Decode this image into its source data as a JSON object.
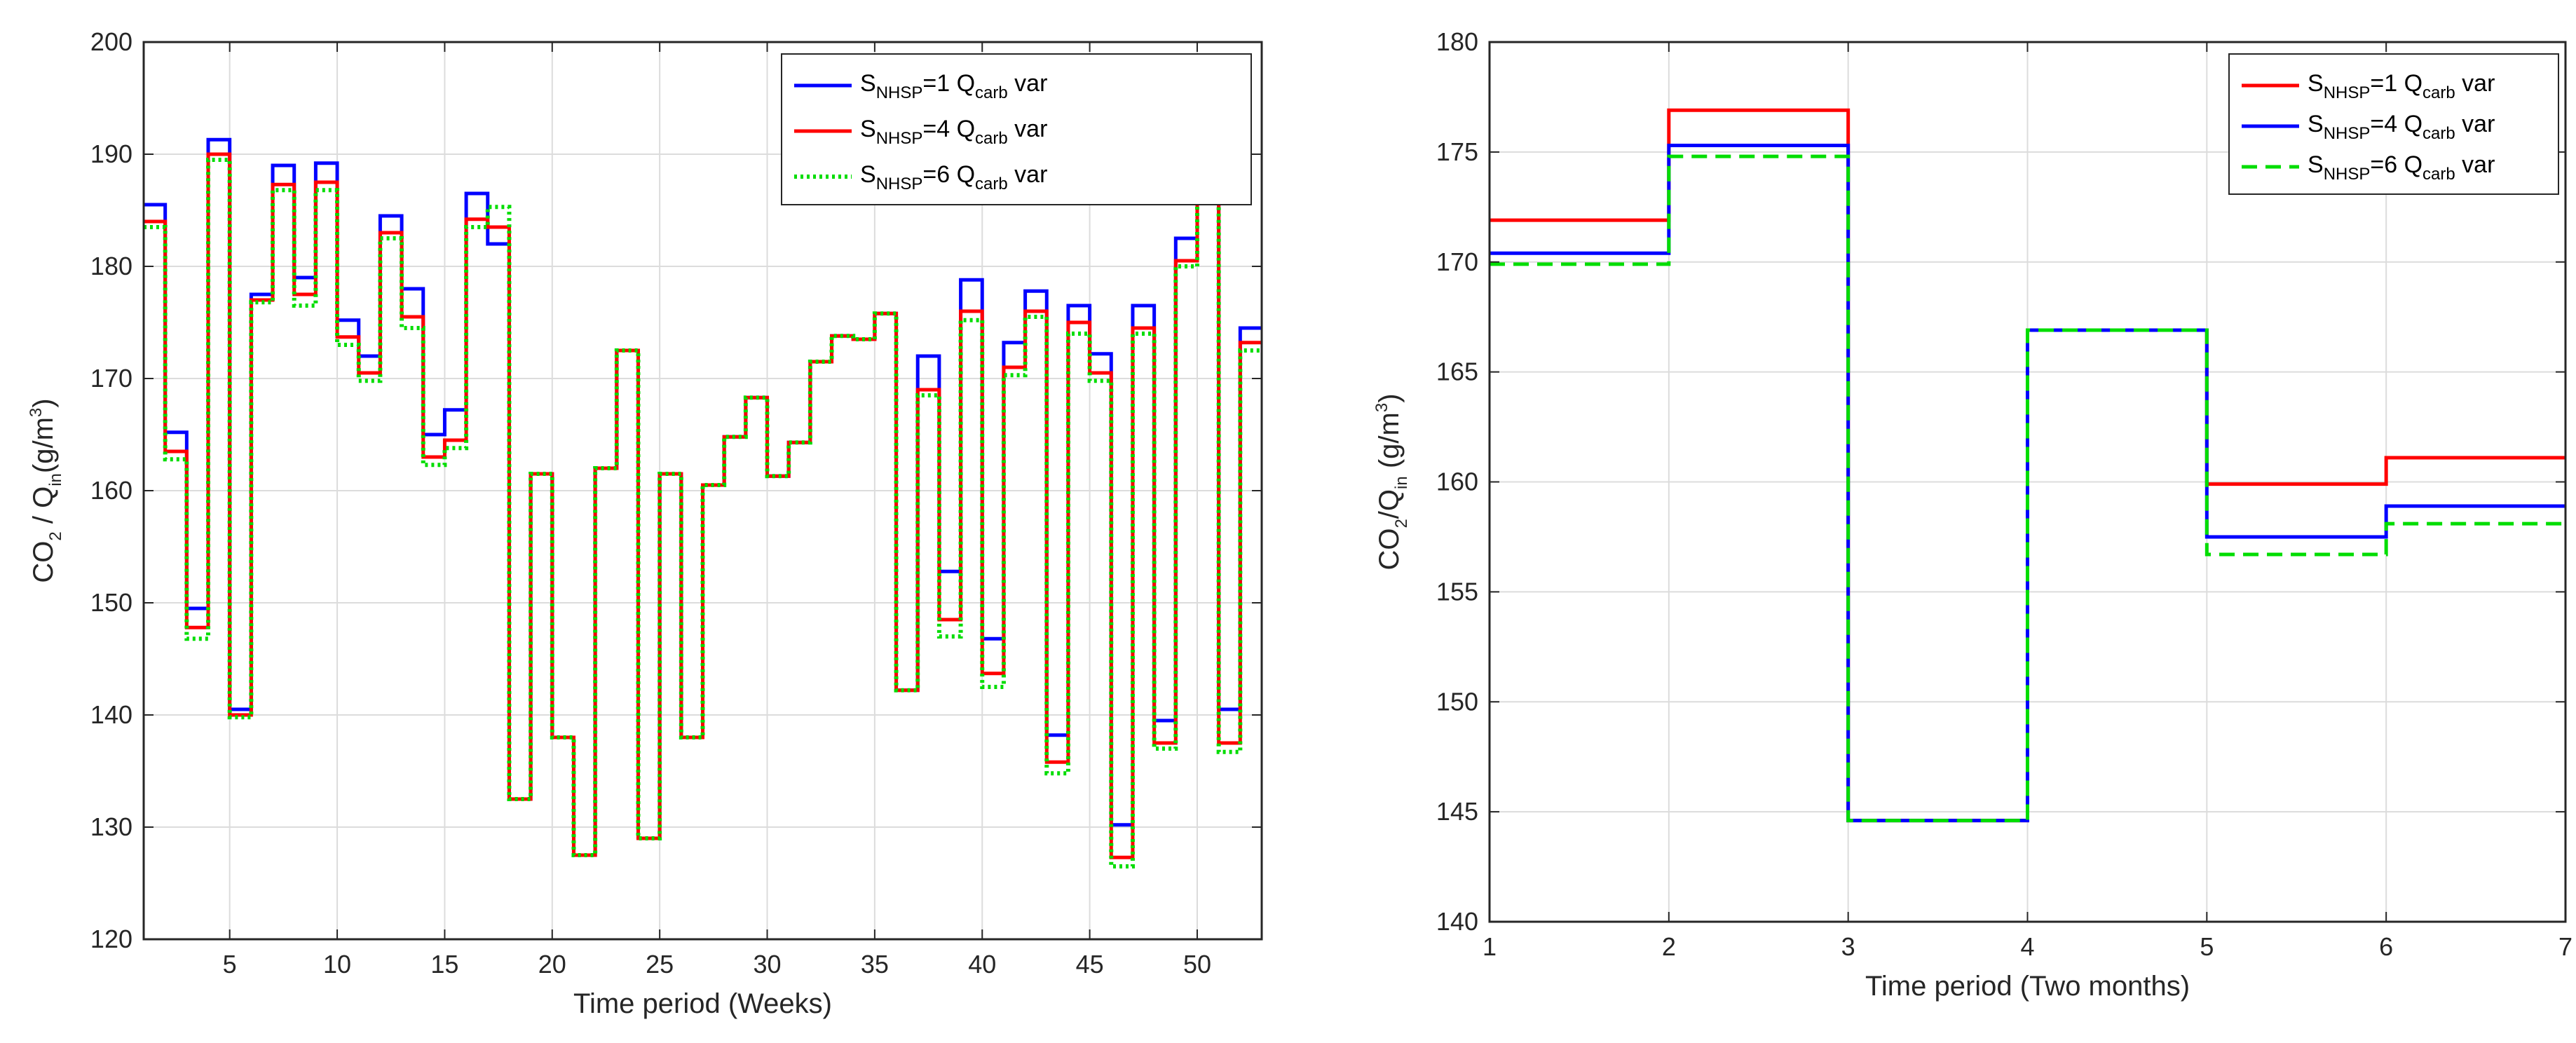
{
  "chart_data": [
    {
      "type": "line",
      "step": true,
      "xlabel": "Time period (Weeks)",
      "ylabel": {
        "main": "CO",
        "s1": "2",
        "mid": " / Q",
        "s2": "in",
        "end": "(g/m",
        "sup": "3",
        "close": ")"
      },
      "xlim": [
        1,
        53
      ],
      "ylim": [
        120,
        200
      ],
      "xticks": [
        5,
        10,
        15,
        20,
        25,
        30,
        35,
        40,
        45,
        50
      ],
      "yticks": [
        120,
        130,
        140,
        150,
        160,
        170,
        180,
        190,
        200
      ],
      "grid": true,
      "legend_position": "top-right",
      "series": [
        {
          "name": "S_NHSP=1 Q_carb var",
          "label_parts": [
            "S",
            "NHSP",
            "=1 Q",
            "carb",
            " var"
          ],
          "color": "#0000ff",
          "dash": "solid",
          "x": [
            1,
            2,
            3,
            4,
            5,
            6,
            7,
            8,
            9,
            10,
            11,
            12,
            13,
            14,
            15,
            16,
            17,
            18,
            19,
            20,
            21,
            22,
            23,
            24,
            25,
            26,
            27,
            28,
            29,
            30,
            31,
            32,
            33,
            34,
            35,
            36,
            37,
            38,
            39,
            40,
            41,
            42,
            43,
            44,
            45,
            46,
            47,
            48,
            49,
            50,
            51,
            52,
            53
          ],
          "values": [
            185.5,
            165.2,
            149.5,
            191.3,
            140.5,
            177.5,
            189.0,
            179.0,
            189.2,
            175.2,
            172.0,
            184.5,
            178.0,
            165.0,
            167.2,
            186.5,
            182.0,
            132.5,
            161.5,
            138.0,
            127.5,
            162.0,
            172.5,
            129.0,
            161.5,
            138.0,
            160.5,
            164.8,
            168.3,
            161.3,
            164.3,
            171.5,
            173.8,
            173.5,
            175.8,
            142.2,
            172.0,
            152.8,
            178.8,
            146.8,
            173.2,
            177.8,
            138.2,
            176.5,
            172.2,
            130.2,
            176.5,
            139.5,
            182.5,
            194.0,
            140.5,
            174.5,
            174.5
          ]
        },
        {
          "name": "S_NHSP=4 Q_carb var",
          "label_parts": [
            "S",
            "NHSP",
            "=4 Q",
            "carb",
            " var"
          ],
          "color": "#ff0000",
          "dash": "solid",
          "x": [
            1,
            2,
            3,
            4,
            5,
            6,
            7,
            8,
            9,
            10,
            11,
            12,
            13,
            14,
            15,
            16,
            17,
            18,
            19,
            20,
            21,
            22,
            23,
            24,
            25,
            26,
            27,
            28,
            29,
            30,
            31,
            32,
            33,
            34,
            35,
            36,
            37,
            38,
            39,
            40,
            41,
            42,
            43,
            44,
            45,
            46,
            47,
            48,
            49,
            50,
            51,
            52,
            53
          ],
          "values": [
            184.0,
            163.5,
            147.8,
            190.0,
            140.0,
            177.0,
            187.3,
            177.5,
            187.5,
            173.7,
            170.5,
            183.0,
            175.5,
            163.0,
            164.5,
            184.2,
            183.5,
            132.5,
            161.5,
            138.0,
            127.5,
            162.0,
            172.5,
            129.0,
            161.5,
            138.0,
            160.5,
            164.8,
            168.3,
            161.3,
            164.3,
            171.5,
            173.8,
            173.5,
            175.8,
            142.2,
            169.0,
            148.5,
            176.0,
            143.7,
            171.0,
            176.0,
            135.8,
            175.0,
            170.5,
            127.3,
            174.5,
            137.5,
            180.5,
            192.2,
            137.5,
            173.2,
            173.2
          ]
        },
        {
          "name": "S_NHSP=6 Q_carb var",
          "label_parts": [
            "S",
            "NHSP",
            "=6 Q",
            "carb",
            " var"
          ],
          "color": "#00dd00",
          "dash": "dotted",
          "x": [
            1,
            2,
            3,
            4,
            5,
            6,
            7,
            8,
            9,
            10,
            11,
            12,
            13,
            14,
            15,
            16,
            17,
            18,
            19,
            20,
            21,
            22,
            23,
            24,
            25,
            26,
            27,
            28,
            29,
            30,
            31,
            32,
            33,
            34,
            35,
            36,
            37,
            38,
            39,
            40,
            41,
            42,
            43,
            44,
            45,
            46,
            47,
            48,
            49,
            50,
            51,
            52,
            53
          ],
          "values": [
            183.5,
            162.8,
            146.8,
            189.5,
            139.8,
            176.8,
            186.8,
            176.5,
            186.8,
            173.0,
            169.8,
            182.5,
            174.5,
            162.3,
            163.8,
            183.5,
            185.3,
            132.5,
            161.5,
            138.0,
            127.5,
            162.0,
            172.5,
            129.0,
            161.5,
            138.0,
            160.5,
            164.8,
            168.3,
            161.3,
            164.3,
            171.5,
            173.8,
            173.5,
            175.8,
            142.2,
            168.5,
            147.0,
            175.2,
            142.5,
            170.3,
            175.5,
            134.8,
            174.0,
            169.8,
            126.5,
            174.0,
            137.0,
            180.0,
            191.8,
            136.7,
            172.5,
            172.5
          ]
        }
      ]
    },
    {
      "type": "line",
      "step": true,
      "xlabel": "Time period (Two months)",
      "ylabel": {
        "main": "CO",
        "s1": "2",
        "mid": "/Q",
        "s2": "in",
        "end": " (g/m",
        "sup": "3",
        "close": ")"
      },
      "xlim": [
        1,
        7
      ],
      "ylim": [
        140,
        180
      ],
      "xticks": [
        1,
        2,
        3,
        4,
        5,
        6,
        7
      ],
      "yticks": [
        140,
        145,
        150,
        155,
        160,
        165,
        170,
        175,
        180
      ],
      "grid": true,
      "legend_position": "top-right",
      "series": [
        {
          "name": "S_NHSP=1 Q_carb var",
          "label_parts": [
            "S",
            "NHSP",
            "=1 Q",
            "carb",
            " var"
          ],
          "color": "#ff0000",
          "dash": "solid",
          "x": [
            1,
            2,
            3,
            4,
            5,
            6,
            7
          ],
          "values": [
            171.9,
            176.9,
            144.6,
            166.9,
            159.9,
            161.1,
            161.1
          ]
        },
        {
          "name": "S_NHSP=4 Q_carb var",
          "label_parts": [
            "S",
            "NHSP",
            "=4 Q",
            "carb",
            " var"
          ],
          "color": "#0000ff",
          "dash": "solid",
          "x": [
            1,
            2,
            3,
            4,
            5,
            6,
            7
          ],
          "values": [
            170.4,
            175.3,
            144.6,
            166.9,
            157.5,
            158.9,
            158.9
          ]
        },
        {
          "name": "S_NHSP=6 Q_carb var",
          "label_parts": [
            "S",
            "NHSP",
            "=6 Q",
            "carb",
            " var"
          ],
          "color": "#00dd00",
          "dash": "dashed",
          "x": [
            1,
            2,
            3,
            4,
            5,
            6,
            7
          ],
          "values": [
            169.9,
            174.8,
            144.6,
            166.9,
            156.7,
            158.1,
            158.1
          ]
        }
      ]
    }
  ]
}
